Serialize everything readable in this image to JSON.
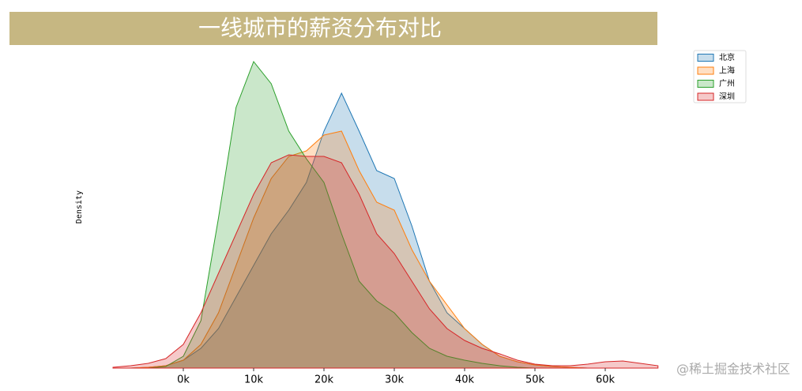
{
  "chart_data": {
    "type": "area",
    "title": "一线城市的薪资分布对比",
    "ylabel": "Density",
    "watermark": "@稀土掘金技术社区",
    "x": [
      -10,
      -7.5,
      -5,
      -2.5,
      0,
      2.5,
      5,
      7.5,
      10,
      12.5,
      15,
      17.5,
      20,
      22.5,
      25,
      27.5,
      30,
      32.5,
      35,
      37.5,
      40,
      42.5,
      45,
      47.5,
      50,
      52.5,
      55,
      57.5,
      60,
      62.5,
      65,
      67.5
    ],
    "xlim": [
      -9.5,
      68
    ],
    "xticks": [
      {
        "value": 0,
        "label": "0k"
      },
      {
        "value": 10,
        "label": "10k"
      },
      {
        "value": 20,
        "label": "20k"
      },
      {
        "value": 30,
        "label": "30k"
      },
      {
        "value": 40,
        "label": "40k"
      },
      {
        "value": 50,
        "label": "50k"
      },
      {
        "value": 60,
        "label": "60k"
      }
    ],
    "ylim": [
      0,
      0.045
    ],
    "legend": "upper right",
    "series": [
      {
        "name": "北京",
        "color": "#1f77b4",
        "values": [
          0,
          0,
          0.0001,
          0.0003,
          0.001,
          0.0025,
          0.005,
          0.009,
          0.013,
          0.017,
          0.02,
          0.0235,
          0.03,
          0.0348,
          0.03,
          0.025,
          0.024,
          0.018,
          0.011,
          0.007,
          0.005,
          0.003,
          0.0015,
          0.0008,
          0.0004,
          0.0002,
          0.0001,
          0,
          0,
          0,
          0,
          0
        ]
      },
      {
        "name": "上海",
        "color": "#ff7f0e",
        "values": [
          0,
          0,
          0.0001,
          0.0003,
          0.001,
          0.003,
          0.007,
          0.013,
          0.019,
          0.024,
          0.0268,
          0.0275,
          0.0295,
          0.03,
          0.025,
          0.021,
          0.02,
          0.015,
          0.011,
          0.008,
          0.005,
          0.003,
          0.0015,
          0.0008,
          0.0004,
          0.0002,
          0.0001,
          0,
          0,
          0,
          0,
          0
        ]
      },
      {
        "name": "广州",
        "color": "#2ca02c",
        "values": [
          0,
          0,
          0,
          0.0002,
          0.0015,
          0.006,
          0.019,
          0.033,
          0.0388,
          0.036,
          0.03,
          0.0265,
          0.0235,
          0.017,
          0.011,
          0.0085,
          0.007,
          0.0045,
          0.0025,
          0.0015,
          0.001,
          0.0006,
          0.0003,
          0.0001,
          0,
          0,
          0,
          0,
          0,
          0,
          0,
          0
        ]
      },
      {
        "name": "深圳",
        "color": "#d62728",
        "values": [
          0.0001,
          0.0003,
          0.0006,
          0.0012,
          0.003,
          0.007,
          0.012,
          0.017,
          0.022,
          0.026,
          0.027,
          0.0268,
          0.0268,
          0.026,
          0.022,
          0.017,
          0.0145,
          0.011,
          0.0075,
          0.005,
          0.0035,
          0.0025,
          0.0018,
          0.001,
          0.0005,
          0.0003,
          0.0003,
          0.0005,
          0.0008,
          0.0009,
          0.0006,
          0.0003
        ]
      }
    ]
  }
}
